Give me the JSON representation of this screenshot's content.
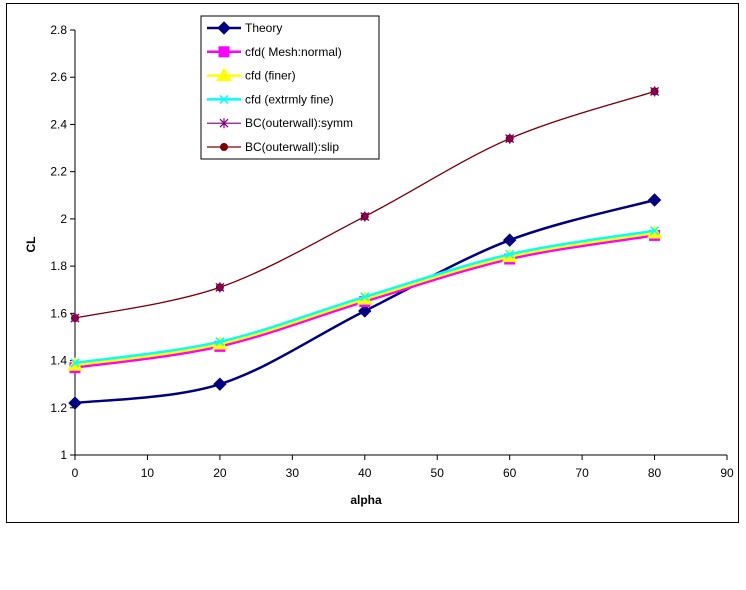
{
  "chart_data": {
    "type": "line",
    "title": "",
    "xlabel": "alpha",
    "ylabel": "CL",
    "xlim": [
      0,
      90
    ],
    "ylim": [
      1,
      2.8
    ],
    "x_ticks": [
      0,
      10,
      20,
      30,
      40,
      50,
      60,
      70,
      80,
      90
    ],
    "y_ticks": [
      1,
      1.2,
      1.4,
      1.6,
      1.8,
      2,
      2.2,
      2.4,
      2.6,
      2.8
    ],
    "x_tick_labels": [
      "0",
      "10",
      "20",
      "30",
      "40",
      "50",
      "60",
      "70",
      "80",
      "90"
    ],
    "y_tick_labels": [
      "1",
      "1.2",
      "1.4",
      "1.6",
      "1.8",
      "2",
      "2.2",
      "2.4",
      "2.6",
      "2.8"
    ],
    "grid": false,
    "legend_position": "top-left",
    "x": [
      0,
      20,
      40,
      60,
      80
    ],
    "series": [
      {
        "name": "Theory",
        "color": "#000080",
        "marker": "diamond",
        "values": [
          1.22,
          1.3,
          1.61,
          1.91,
          2.08
        ]
      },
      {
        "name": "cfd( Mesh:normal)",
        "color": "#FF00FF",
        "marker": "square",
        "values": [
          1.37,
          1.46,
          1.65,
          1.83,
          1.93
        ]
      },
      {
        "name": "cfd (finer)",
        "color": "#FFFF00",
        "marker": "triangle",
        "values": [
          1.38,
          1.47,
          1.66,
          1.84,
          1.94
        ]
      },
      {
        "name": "cfd (extrmly fine)",
        "color": "#00FFFF",
        "marker": "x",
        "values": [
          1.39,
          1.48,
          1.67,
          1.85,
          1.95
        ]
      },
      {
        "name": "BC(outerwall):symm",
        "color": "#800080",
        "marker": "star",
        "values": [
          1.58,
          1.71,
          2.01,
          2.34,
          2.54
        ]
      },
      {
        "name": "BC(outerwall):slip",
        "color": "#800000",
        "marker": "circle",
        "values": [
          1.58,
          1.71,
          2.01,
          2.34,
          2.54
        ]
      }
    ]
  }
}
